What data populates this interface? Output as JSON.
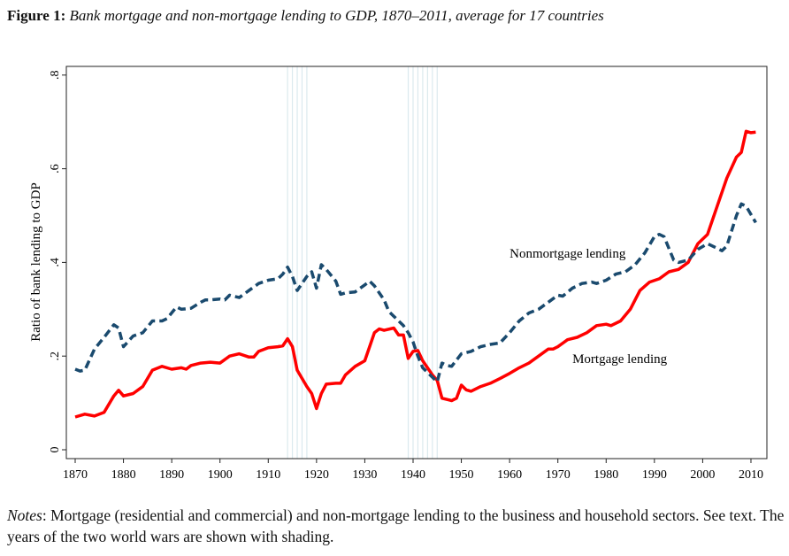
{
  "figure": {
    "label": "Figure 1:",
    "title": "Bank mortgage and non-mortgage lending to GDP, 1870–2011, average for 17 countries",
    "notes_label": "Notes",
    "notes_text": ": Mortgage (residential and commercial) and non-mortgage lending to the business and household sectors. See text. The years of the two world wars are shown with shading."
  },
  "chart_data": {
    "type": "line",
    "xlabel": "",
    "ylabel": "Ratio of bank lending to GDP",
    "xlim": [
      1870,
      2011
    ],
    "ylim": [
      0,
      0.8
    ],
    "xticks": [
      1870,
      1880,
      1890,
      1900,
      1910,
      1920,
      1930,
      1940,
      1950,
      1960,
      1970,
      1980,
      1990,
      2000,
      2010
    ],
    "yticks": [
      {
        "v": 0,
        "label": "0"
      },
      {
        "v": 0.2,
        "label": ".2"
      },
      {
        "v": 0.4,
        "label": ".4"
      },
      {
        "v": 0.6,
        "label": ".6"
      },
      {
        "v": 0.8,
        "label": ".8"
      }
    ],
    "grid": false,
    "shading": [
      {
        "from": 1914,
        "to": 1918
      },
      {
        "from": 1939,
        "to": 1945
      }
    ],
    "shading_color": "#dbe9ee",
    "series": [
      {
        "name": "Mortgage lending",
        "color": "#ff0000",
        "style": "solid",
        "points": [
          [
            1870,
            0.07
          ],
          [
            1872,
            0.076
          ],
          [
            1874,
            0.072
          ],
          [
            1876,
            0.08
          ],
          [
            1878,
            0.115
          ],
          [
            1879,
            0.127
          ],
          [
            1880,
            0.115
          ],
          [
            1882,
            0.12
          ],
          [
            1884,
            0.135
          ],
          [
            1886,
            0.17
          ],
          [
            1888,
            0.178
          ],
          [
            1890,
            0.172
          ],
          [
            1892,
            0.175
          ],
          [
            1893,
            0.172
          ],
          [
            1894,
            0.18
          ],
          [
            1896,
            0.185
          ],
          [
            1898,
            0.187
          ],
          [
            1900,
            0.185
          ],
          [
            1902,
            0.2
          ],
          [
            1904,
            0.205
          ],
          [
            1906,
            0.198
          ],
          [
            1907,
            0.198
          ],
          [
            1908,
            0.21
          ],
          [
            1910,
            0.218
          ],
          [
            1912,
            0.22
          ],
          [
            1913,
            0.222
          ],
          [
            1914,
            0.237
          ],
          [
            1915,
            0.22
          ],
          [
            1916,
            0.17
          ],
          [
            1918,
            0.135
          ],
          [
            1919,
            0.12
          ],
          [
            1920,
            0.088
          ],
          [
            1921,
            0.12
          ],
          [
            1922,
            0.14
          ],
          [
            1924,
            0.142
          ],
          [
            1925,
            0.142
          ],
          [
            1926,
            0.16
          ],
          [
            1928,
            0.178
          ],
          [
            1930,
            0.19
          ],
          [
            1932,
            0.25
          ],
          [
            1933,
            0.258
          ],
          [
            1934,
            0.255
          ],
          [
            1936,
            0.26
          ],
          [
            1937,
            0.245
          ],
          [
            1938,
            0.245
          ],
          [
            1939,
            0.195
          ],
          [
            1940,
            0.21
          ],
          [
            1941,
            0.212
          ],
          [
            1942,
            0.19
          ],
          [
            1944,
            0.16
          ],
          [
            1945,
            0.148
          ],
          [
            1946,
            0.11
          ],
          [
            1948,
            0.105
          ],
          [
            1949,
            0.11
          ],
          [
            1950,
            0.138
          ],
          [
            1951,
            0.128
          ],
          [
            1952,
            0.125
          ],
          [
            1954,
            0.135
          ],
          [
            1956,
            0.142
          ],
          [
            1958,
            0.152
          ],
          [
            1960,
            0.163
          ],
          [
            1962,
            0.175
          ],
          [
            1964,
            0.185
          ],
          [
            1966,
            0.2
          ],
          [
            1968,
            0.215
          ],
          [
            1969,
            0.215
          ],
          [
            1970,
            0.22
          ],
          [
            1972,
            0.235
          ],
          [
            1974,
            0.24
          ],
          [
            1976,
            0.25
          ],
          [
            1978,
            0.265
          ],
          [
            1980,
            0.268
          ],
          [
            1981,
            0.265
          ],
          [
            1983,
            0.275
          ],
          [
            1985,
            0.3
          ],
          [
            1987,
            0.34
          ],
          [
            1989,
            0.358
          ],
          [
            1991,
            0.365
          ],
          [
            1993,
            0.38
          ],
          [
            1995,
            0.385
          ],
          [
            1997,
            0.4
          ],
          [
            1999,
            0.44
          ],
          [
            2001,
            0.46
          ],
          [
            2003,
            0.52
          ],
          [
            2005,
            0.58
          ],
          [
            2007,
            0.625
          ],
          [
            2008,
            0.635
          ],
          [
            2009,
            0.68
          ],
          [
            2010,
            0.677
          ],
          [
            2011,
            0.678
          ]
        ]
      },
      {
        "name": "Nonmortgage lending",
        "color": "#1a4a6e",
        "style": "dashed",
        "points": [
          [
            1870,
            0.172
          ],
          [
            1871,
            0.168
          ],
          [
            1872,
            0.17
          ],
          [
            1874,
            0.215
          ],
          [
            1876,
            0.24
          ],
          [
            1878,
            0.267
          ],
          [
            1879,
            0.26
          ],
          [
            1880,
            0.22
          ],
          [
            1882,
            0.243
          ],
          [
            1884,
            0.25
          ],
          [
            1886,
            0.275
          ],
          [
            1888,
            0.275
          ],
          [
            1889,
            0.28
          ],
          [
            1891,
            0.305
          ],
          [
            1892,
            0.3
          ],
          [
            1894,
            0.302
          ],
          [
            1896,
            0.315
          ],
          [
            1897,
            0.32
          ],
          [
            1898,
            0.32
          ],
          [
            1900,
            0.322
          ],
          [
            1901,
            0.32
          ],
          [
            1902,
            0.33
          ],
          [
            1904,
            0.325
          ],
          [
            1906,
            0.34
          ],
          [
            1908,
            0.355
          ],
          [
            1910,
            0.362
          ],
          [
            1912,
            0.365
          ],
          [
            1913,
            0.375
          ],
          [
            1914,
            0.39
          ],
          [
            1915,
            0.37
          ],
          [
            1916,
            0.34
          ],
          [
            1918,
            0.37
          ],
          [
            1919,
            0.38
          ],
          [
            1920,
            0.345
          ],
          [
            1921,
            0.395
          ],
          [
            1922,
            0.385
          ],
          [
            1924,
            0.36
          ],
          [
            1925,
            0.332
          ],
          [
            1926,
            0.335
          ],
          [
            1928,
            0.337
          ],
          [
            1930,
            0.352
          ],
          [
            1931,
            0.36
          ],
          [
            1932,
            0.35
          ],
          [
            1934,
            0.32
          ],
          [
            1935,
            0.295
          ],
          [
            1936,
            0.285
          ],
          [
            1938,
            0.265
          ],
          [
            1939,
            0.25
          ],
          [
            1940,
            0.23
          ],
          [
            1941,
            0.2
          ],
          [
            1942,
            0.175
          ],
          [
            1944,
            0.155
          ],
          [
            1945,
            0.145
          ],
          [
            1946,
            0.185
          ],
          [
            1947,
            0.18
          ],
          [
            1948,
            0.178
          ],
          [
            1950,
            0.205
          ],
          [
            1952,
            0.21
          ],
          [
            1954,
            0.22
          ],
          [
            1956,
            0.225
          ],
          [
            1958,
            0.228
          ],
          [
            1960,
            0.25
          ],
          [
            1962,
            0.275
          ],
          [
            1964,
            0.292
          ],
          [
            1966,
            0.3
          ],
          [
            1968,
            0.315
          ],
          [
            1970,
            0.33
          ],
          [
            1971,
            0.328
          ],
          [
            1973,
            0.345
          ],
          [
            1975,
            0.355
          ],
          [
            1977,
            0.358
          ],
          [
            1978,
            0.355
          ],
          [
            1980,
            0.362
          ],
          [
            1982,
            0.375
          ],
          [
            1984,
            0.38
          ],
          [
            1986,
            0.395
          ],
          [
            1988,
            0.42
          ],
          [
            1990,
            0.455
          ],
          [
            1991,
            0.46
          ],
          [
            1992,
            0.455
          ],
          [
            1993,
            0.43
          ],
          [
            1994,
            0.405
          ],
          [
            1995,
            0.4
          ],
          [
            1997,
            0.405
          ],
          [
            1999,
            0.428
          ],
          [
            2001,
            0.44
          ],
          [
            2003,
            0.43
          ],
          [
            2004,
            0.425
          ],
          [
            2005,
            0.435
          ],
          [
            2007,
            0.5
          ],
          [
            2008,
            0.525
          ],
          [
            2009,
            0.52
          ],
          [
            2011,
            0.485
          ]
        ]
      }
    ],
    "annotations": [
      {
        "text": "Nonmortgage lending",
        "x": 1960,
        "y": 0.41
      },
      {
        "text": "Mortgage lending",
        "x": 1973,
        "y": 0.185
      }
    ]
  }
}
